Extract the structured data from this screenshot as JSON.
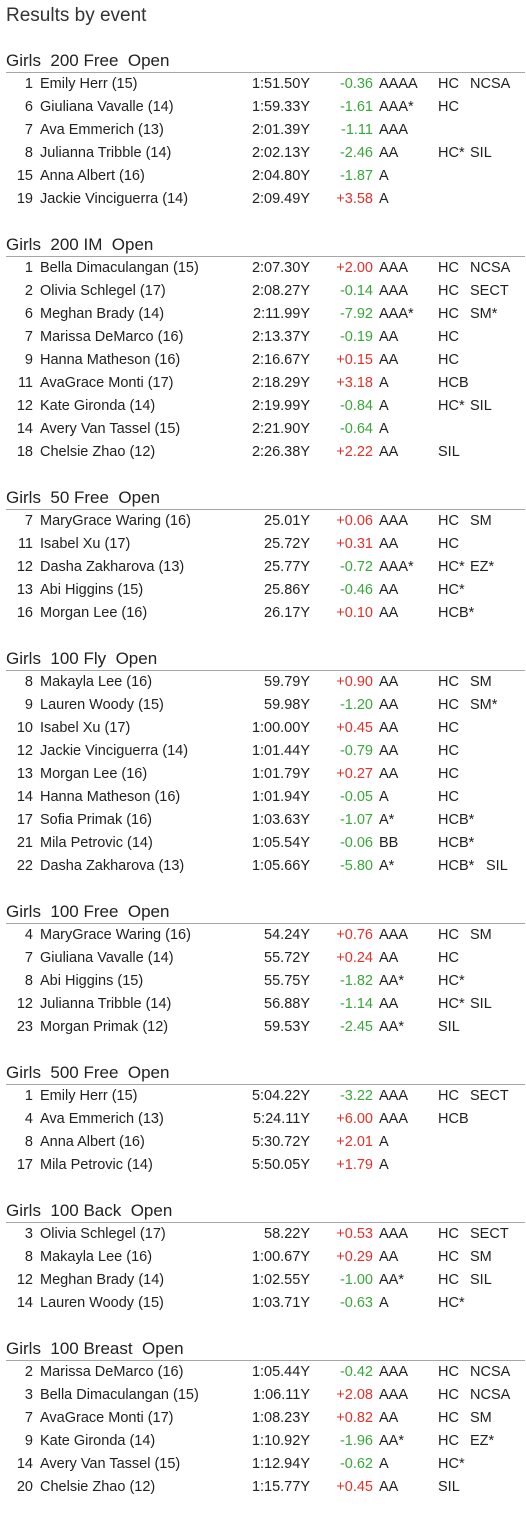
{
  "page": {
    "title": "Results by event"
  },
  "colors": {
    "improvement": "#3aa63a",
    "slower": "#e0312a",
    "divider": "#a6a6a6"
  },
  "events": [
    {
      "title": "Girls  200 Free  Open",
      "rows": [
        {
          "place": "1",
          "swimmer": "Emily Herr (15)",
          "time": "1:51.50Y",
          "delta": "-0.36",
          "std": "AAAA",
          "c1": "HC",
          "c2": "NCSA"
        },
        {
          "place": "6",
          "swimmer": "Giuliana Vavalle (14)",
          "time": "1:59.33Y",
          "delta": "-1.61",
          "std": "AAA*",
          "c1": "HC",
          "c2": ""
        },
        {
          "place": "7",
          "swimmer": "Ava Emmerich (13)",
          "time": "2:01.39Y",
          "delta": "-1.11",
          "std": "AAA",
          "c1": "",
          "c2": ""
        },
        {
          "place": "8",
          "swimmer": "Julianna Tribble (14)",
          "time": "2:02.13Y",
          "delta": "-2.46",
          "std": "AA",
          "c1": "HC*",
          "c2": "SIL"
        },
        {
          "place": "15",
          "swimmer": "Anna Albert (16)",
          "time": "2:04.80Y",
          "delta": "-1.87",
          "std": "A",
          "c1": "",
          "c2": ""
        },
        {
          "place": "19",
          "swimmer": "Jackie Vinciguerra (14)",
          "time": "2:09.49Y",
          "delta": "+3.58",
          "std": "A",
          "c1": "",
          "c2": ""
        }
      ]
    },
    {
      "title": "Girls  200 IM  Open",
      "rows": [
        {
          "place": "1",
          "swimmer": "Bella Dimaculangan (15)",
          "time": "2:07.30Y",
          "delta": "+2.00",
          "std": "AAA",
          "c1": "HC",
          "c2": "NCSA"
        },
        {
          "place": "2",
          "swimmer": "Olivia Schlegel (17)",
          "time": "2:08.27Y",
          "delta": "-0.14",
          "std": "AAA",
          "c1": "HC",
          "c2": "SECT"
        },
        {
          "place": "6",
          "swimmer": "Meghan Brady (14)",
          "time": "2:11.99Y",
          "delta": "-7.92",
          "std": "AAA*",
          "c1": "HC",
          "c2": "SM*"
        },
        {
          "place": "7",
          "swimmer": "Marissa DeMarco (16)",
          "time": "2:13.37Y",
          "delta": "-0.19",
          "std": "AA",
          "c1": "HC",
          "c2": ""
        },
        {
          "place": "9",
          "swimmer": "Hanna Matheson (16)",
          "time": "2:16.67Y",
          "delta": "+0.15",
          "std": "AA",
          "c1": "HC",
          "c2": ""
        },
        {
          "place": "11",
          "swimmer": "AvaGrace Monti (17)",
          "time": "2:18.29Y",
          "delta": "+3.18",
          "std": "A",
          "c1": "HCB",
          "c2": ""
        },
        {
          "place": "12",
          "swimmer": "Kate Gironda (14)",
          "time": "2:19.99Y",
          "delta": "-0.84",
          "std": "A",
          "c1": "HC*",
          "c2": "SIL"
        },
        {
          "place": "14",
          "swimmer": "Avery Van Tassel (15)",
          "time": "2:21.90Y",
          "delta": "-0.64",
          "std": "A",
          "c1": "",
          "c2": ""
        },
        {
          "place": "18",
          "swimmer": "Chelsie Zhao (12)",
          "time": "2:26.38Y",
          "delta": "+2.22",
          "std": "AA",
          "c1": "SIL",
          "c2": ""
        }
      ]
    },
    {
      "title": "Girls  50 Free  Open",
      "rows": [
        {
          "place": "7",
          "swimmer": "MaryGrace Waring (16)",
          "time": "25.01Y",
          "delta": "+0.06",
          "std": "AAA",
          "c1": "HC",
          "c2": "SM"
        },
        {
          "place": "11",
          "swimmer": "Isabel Xu (17)",
          "time": "25.72Y",
          "delta": "+0.31",
          "std": "AA",
          "c1": "HC",
          "c2": ""
        },
        {
          "place": "12",
          "swimmer": "Dasha Zakharova (13)",
          "time": "25.77Y",
          "delta": "-0.72",
          "std": "AAA*",
          "c1": "HC*",
          "c2": "EZ*"
        },
        {
          "place": "13",
          "swimmer": "Abi Higgins (15)",
          "time": "25.86Y",
          "delta": "-0.46",
          "std": "AA",
          "c1": "HC*",
          "c2": ""
        },
        {
          "place": "16",
          "swimmer": "Morgan Lee (16)",
          "time": "26.17Y",
          "delta": "+0.10",
          "std": "AA",
          "c1": "HCB*",
          "c2": ""
        }
      ]
    },
    {
      "title": "Girls  100 Fly  Open",
      "rows": [
        {
          "place": "8",
          "swimmer": "Makayla Lee (16)",
          "time": "59.79Y",
          "delta": "+0.90",
          "std": "AA",
          "c1": "HC",
          "c2": "SM"
        },
        {
          "place": "9",
          "swimmer": "Lauren Woody (15)",
          "time": "59.98Y",
          "delta": "-1.20",
          "std": "AA",
          "c1": "HC",
          "c2": "SM*"
        },
        {
          "place": "10",
          "swimmer": "Isabel Xu (17)",
          "time": "1:00.00Y",
          "delta": "+0.45",
          "std": "AA",
          "c1": "HC",
          "c2": ""
        },
        {
          "place": "12",
          "swimmer": "Jackie Vinciguerra (14)",
          "time": "1:01.44Y",
          "delta": "-0.79",
          "std": "AA",
          "c1": "HC",
          "c2": ""
        },
        {
          "place": "13",
          "swimmer": "Morgan Lee (16)",
          "time": "1:01.79Y",
          "delta": "+0.27",
          "std": "AA",
          "c1": "HC",
          "c2": ""
        },
        {
          "place": "14",
          "swimmer": "Hanna Matheson (16)",
          "time": "1:01.94Y",
          "delta": "-0.05",
          "std": "A",
          "c1": "HC",
          "c2": ""
        },
        {
          "place": "17",
          "swimmer": "Sofia Primak (16)",
          "time": "1:03.63Y",
          "delta": "-1.07",
          "std": "A*",
          "c1": "HCB*",
          "c2": ""
        },
        {
          "place": "21",
          "swimmer": "Mila Petrovic (14)",
          "time": "1:05.54Y",
          "delta": "-0.06",
          "std": "BB",
          "c1": "HCB*",
          "c2": ""
        },
        {
          "place": "22",
          "swimmer": "Dasha Zakharova (13)",
          "time": "1:05.66Y",
          "delta": "-5.80",
          "std": "A*",
          "c1": "HCB*",
          "c3": "SIL"
        }
      ]
    },
    {
      "title": "Girls  100 Free  Open",
      "rows": [
        {
          "place": "4",
          "swimmer": "MaryGrace Waring (16)",
          "time": "54.24Y",
          "delta": "+0.76",
          "std": "AAA",
          "c1": "HC",
          "c2": "SM"
        },
        {
          "place": "7",
          "swimmer": "Giuliana Vavalle (14)",
          "time": "55.72Y",
          "delta": "+0.24",
          "std": "AA",
          "c1": "HC",
          "c2": ""
        },
        {
          "place": "8",
          "swimmer": "Abi Higgins (15)",
          "time": "55.75Y",
          "delta": "-1.82",
          "std": "AA*",
          "c1": "HC*",
          "c2": ""
        },
        {
          "place": "12",
          "swimmer": "Julianna Tribble (14)",
          "time": "56.88Y",
          "delta": "-1.14",
          "std": "AA",
          "c1": "HC*",
          "c2": "SIL"
        },
        {
          "place": "23",
          "swimmer": "Morgan Primak (12)",
          "time": "59.53Y",
          "delta": "-2.45",
          "std": "AA*",
          "c1": "SIL",
          "c2": ""
        }
      ]
    },
    {
      "title": "Girls  500 Free  Open",
      "rows": [
        {
          "place": "1",
          "swimmer": "Emily Herr (15)",
          "time": "5:04.22Y",
          "delta": "-3.22",
          "std": "AAA",
          "c1": "HC",
          "c2": "SECT"
        },
        {
          "place": "4",
          "swimmer": "Ava Emmerich (13)",
          "time": "5:24.11Y",
          "delta": "+6.00",
          "std": "AAA",
          "c1": "HCB",
          "c2": ""
        },
        {
          "place": "8",
          "swimmer": "Anna Albert (16)",
          "time": "5:30.72Y",
          "delta": "+2.01",
          "std": "A",
          "c1": "",
          "c2": ""
        },
        {
          "place": "17",
          "swimmer": "Mila Petrovic (14)",
          "time": "5:50.05Y",
          "delta": "+1.79",
          "std": "A",
          "c1": "",
          "c2": ""
        }
      ]
    },
    {
      "title": "Girls  100 Back  Open",
      "rows": [
        {
          "place": "3",
          "swimmer": "Olivia Schlegel (17)",
          "time": "58.22Y",
          "delta": "+0.53",
          "std": "AAA",
          "c1": "HC",
          "c2": "SECT"
        },
        {
          "place": "8",
          "swimmer": "Makayla Lee (16)",
          "time": "1:00.67Y",
          "delta": "+0.29",
          "std": "AA",
          "c1": "HC",
          "c2": "SM"
        },
        {
          "place": "12",
          "swimmer": "Meghan Brady (14)",
          "time": "1:02.55Y",
          "delta": "-1.00",
          "std": "AA*",
          "c1": "HC",
          "c2": "SIL"
        },
        {
          "place": "14",
          "swimmer": "Lauren Woody (15)",
          "time": "1:03.71Y",
          "delta": "-0.63",
          "std": "A",
          "c1": "HC*",
          "c2": ""
        }
      ]
    },
    {
      "title": "Girls  100 Breast  Open",
      "rows": [
        {
          "place": "2",
          "swimmer": "Marissa DeMarco (16)",
          "time": "1:05.44Y",
          "delta": "-0.42",
          "std": "AAA",
          "c1": "HC",
          "c2": "NCSA"
        },
        {
          "place": "3",
          "swimmer": "Bella Dimaculangan (15)",
          "time": "1:06.11Y",
          "delta": "+2.08",
          "std": "AAA",
          "c1": "HC",
          "c2": "NCSA"
        },
        {
          "place": "7",
          "swimmer": "AvaGrace Monti (17)",
          "time": "1:08.23Y",
          "delta": "+0.82",
          "std": "AA",
          "c1": "HC",
          "c2": "SM"
        },
        {
          "place": "9",
          "swimmer": "Kate Gironda (14)",
          "time": "1:10.92Y",
          "delta": "-1.96",
          "std": "AA*",
          "c1": "HC",
          "c2": "EZ*"
        },
        {
          "place": "14",
          "swimmer": "Avery Van Tassel (15)",
          "time": "1:12.94Y",
          "delta": "-0.62",
          "std": "A",
          "c1": "HC*",
          "c2": ""
        },
        {
          "place": "20",
          "swimmer": "Chelsie Zhao (12)",
          "time": "1:15.77Y",
          "delta": "+0.45",
          "std": "AA",
          "c1": "SIL",
          "c2": ""
        }
      ]
    }
  ]
}
